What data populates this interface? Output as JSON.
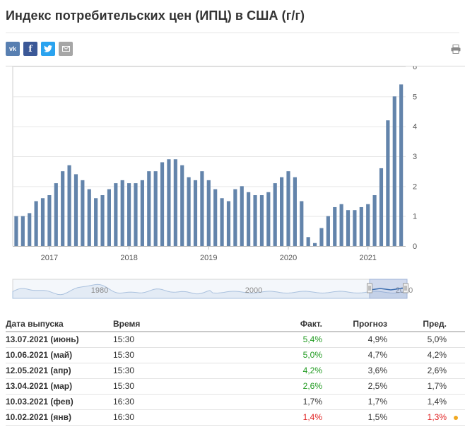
{
  "header": {
    "title": "Индекс потребительских цен (ИПЦ) в США (г/г)"
  },
  "share": {
    "vk": "vk",
    "facebook": "f",
    "twitter": "twitter-bird",
    "mail": "envelope"
  },
  "icons": {
    "print": "printer-icon"
  },
  "colors": {
    "bar": "#6384ab",
    "up": "#1f9a1f",
    "down": "#e02020",
    "accent": "#f0a822"
  },
  "chart_data": {
    "type": "bar",
    "title": "",
    "xlabel": "",
    "ylabel": "",
    "ylim": [
      0,
      6
    ],
    "y_ticks": [
      "0",
      "1",
      "2",
      "3",
      "4",
      "5",
      "6"
    ],
    "x_ticks": [
      {
        "label": "2017",
        "month_index": 5
      },
      {
        "label": "2018",
        "month_index": 17
      },
      {
        "label": "2019",
        "month_index": 29
      },
      {
        "label": "2020",
        "month_index": 41
      },
      {
        "label": "2021",
        "month_index": 53
      }
    ],
    "values": [
      1.0,
      1.0,
      1.1,
      1.5,
      1.6,
      1.7,
      2.1,
      2.5,
      2.7,
      2.4,
      2.2,
      1.9,
      1.6,
      1.7,
      1.9,
      2.1,
      2.2,
      2.1,
      2.1,
      2.2,
      2.5,
      2.5,
      2.8,
      2.9,
      2.9,
      2.7,
      2.3,
      2.2,
      2.5,
      2.2,
      1.9,
      1.6,
      1.5,
      1.9,
      2.0,
      1.8,
      1.7,
      1.7,
      1.8,
      2.1,
      2.3,
      2.5,
      2.3,
      1.5,
      0.3,
      0.1,
      0.6,
      1.0,
      1.3,
      1.4,
      1.2,
      1.2,
      1.3,
      1.4,
      1.7,
      2.6,
      4.2,
      5.0,
      5.4
    ],
    "navigator": {
      "labels": [
        "1980",
        "2000",
        "2020"
      ]
    }
  },
  "table": {
    "headers": {
      "date": "Дата выпуска",
      "time": "Время",
      "actual": "Факт.",
      "forecast": "Прогноз",
      "previous": "Пред."
    },
    "rows": [
      {
        "date": "13.07.2021 (июнь)",
        "time": "15:30",
        "actual": "5,4%",
        "forecast": "4,9%",
        "previous": "5,0%",
        "actual_status": "up",
        "previous_status": "",
        "dot": false
      },
      {
        "date": "10.06.2021 (май)",
        "time": "15:30",
        "actual": "5,0%",
        "forecast": "4,7%",
        "previous": "4,2%",
        "actual_status": "up",
        "previous_status": "",
        "dot": false
      },
      {
        "date": "12.05.2021 (апр)",
        "time": "15:30",
        "actual": "4,2%",
        "forecast": "3,6%",
        "previous": "2,6%",
        "actual_status": "up",
        "previous_status": "",
        "dot": false
      },
      {
        "date": "13.04.2021 (мар)",
        "time": "15:30",
        "actual": "2,6%",
        "forecast": "2,5%",
        "previous": "1,7%",
        "actual_status": "up",
        "previous_status": "",
        "dot": false
      },
      {
        "date": "10.03.2021 (фев)",
        "time": "16:30",
        "actual": "1,7%",
        "forecast": "1,7%",
        "previous": "1,4%",
        "actual_status": "",
        "previous_status": "",
        "dot": false
      },
      {
        "date": "10.02.2021 (янв)",
        "time": "16:30",
        "actual": "1,4%",
        "forecast": "1,5%",
        "previous": "1,3%",
        "actual_status": "down",
        "previous_status": "down",
        "dot": true
      }
    ]
  }
}
